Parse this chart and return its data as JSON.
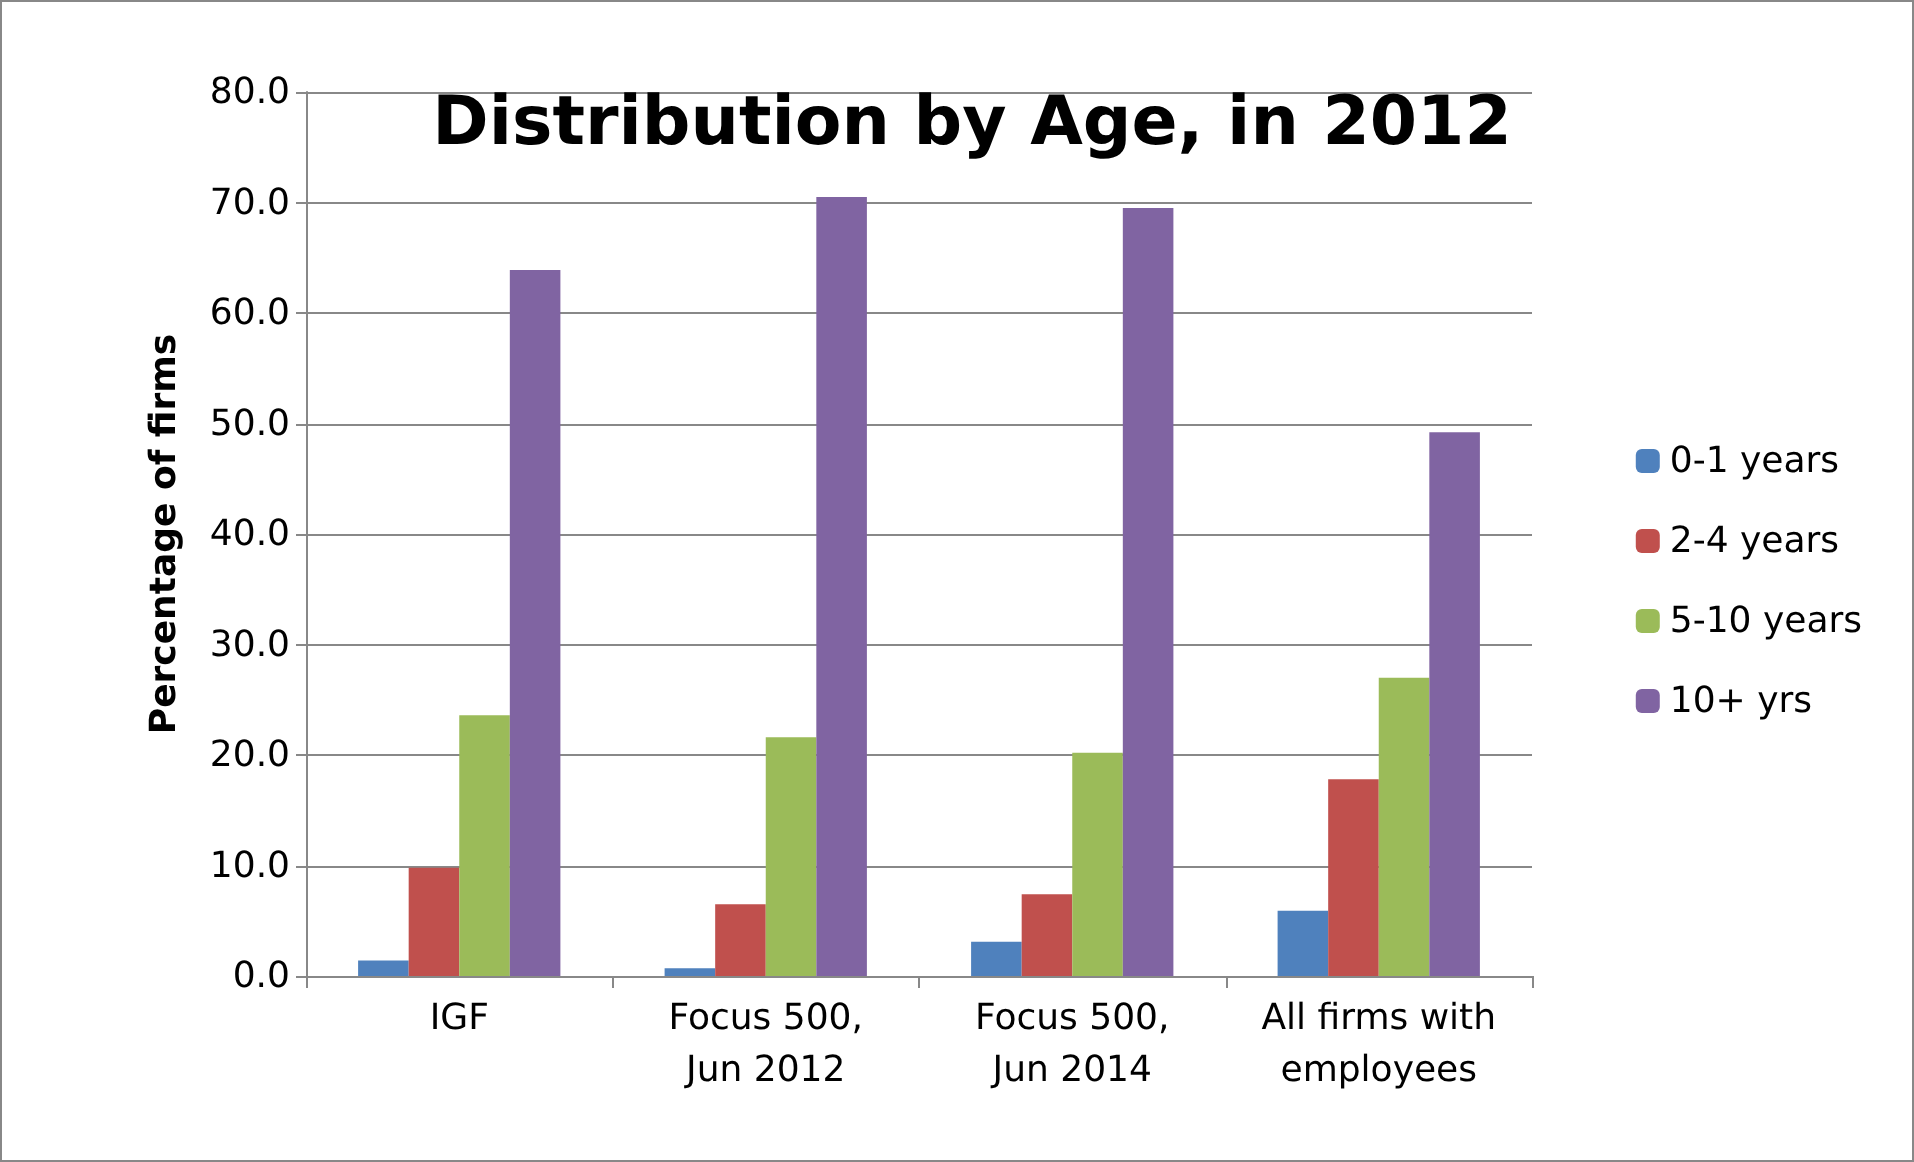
{
  "chart_data": {
    "type": "bar",
    "title": "Distribution by Age, in 2012",
    "ylabel": "Percentage of firms",
    "categories": [
      "IGF",
      "Focus 500,\nJun 2012",
      "Focus 500,\nJun 2014",
      "All firms with\nemployees"
    ],
    "series": [
      {
        "name": "0-1 years",
        "color": "#4f81bd",
        "values": [
          1.4,
          0.7,
          3.1,
          5.9
        ]
      },
      {
        "name": "2-4 years",
        "color": "#c0504d",
        "values": [
          9.8,
          6.5,
          7.4,
          17.8
        ]
      },
      {
        "name": "5-10 years",
        "color": "#9bbb59",
        "values": [
          23.6,
          21.6,
          20.2,
          27.0
        ]
      },
      {
        "name": "10+ yrs",
        "color": "#8064a2",
        "values": [
          63.9,
          70.5,
          69.5,
          49.2
        ]
      }
    ],
    "ylim": [
      0,
      80
    ],
    "yticks": [
      {
        "value": 0,
        "label": "0.0"
      },
      {
        "value": 10,
        "label": "10.0"
      },
      {
        "value": 20,
        "label": "20.0"
      },
      {
        "value": 30,
        "label": "30.0"
      },
      {
        "value": 40,
        "label": "40.0"
      },
      {
        "value": 50,
        "label": "50.0"
      },
      {
        "value": 60,
        "label": "60.0"
      },
      {
        "value": 70,
        "label": "70.0"
      },
      {
        "value": 80,
        "label": "80.0"
      }
    ],
    "grid": "y",
    "legend": "right"
  }
}
